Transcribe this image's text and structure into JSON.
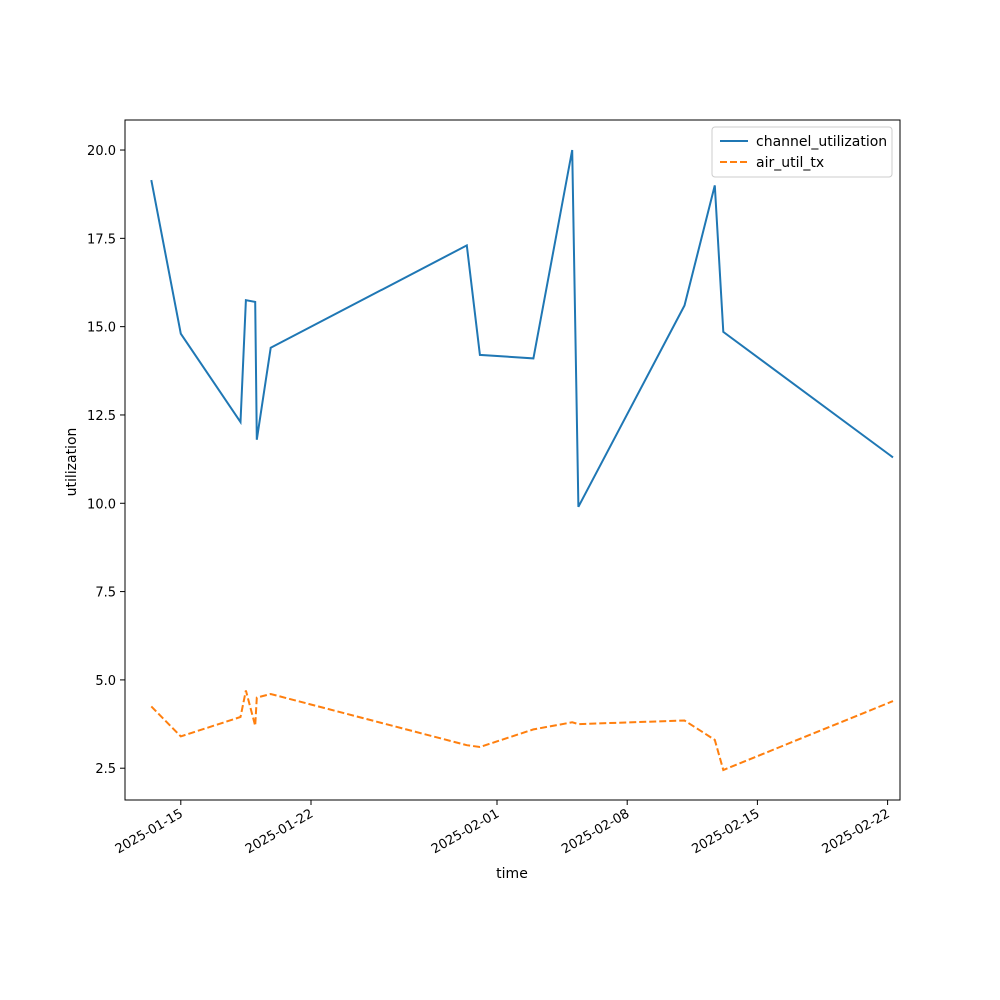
{
  "chart_data": {
    "type": "line",
    "title": "",
    "xlabel": "time",
    "ylabel": "utilization",
    "xlim": [
      "2025-01-12T00:00",
      "2025-02-22T16:00"
    ],
    "ylim": [
      1.6,
      20.85
    ],
    "x_ticks": [
      "2025-01-15",
      "2025-01-22",
      "2025-02-01",
      "2025-02-08",
      "2025-02-15",
      "2025-02-22"
    ],
    "y_ticks": [
      "2.5",
      "5.0",
      "7.5",
      "10.0",
      "12.5",
      "15.0",
      "17.5",
      "20.0"
    ],
    "legend_position": "top-right",
    "grid": false,
    "series": [
      {
        "name": "channel_utilization",
        "color": "#1f77b4",
        "style": "solid",
        "points": [
          {
            "x": "2025-01-13T10:00",
            "y": 19.15
          },
          {
            "x": "2025-01-15T00:00",
            "y": 14.8
          },
          {
            "x": "2025-01-18T05:00",
            "y": 12.3
          },
          {
            "x": "2025-01-18T12:00",
            "y": 15.75
          },
          {
            "x": "2025-01-19T00:00",
            "y": 15.7
          },
          {
            "x": "2025-01-19T02:00",
            "y": 11.8
          },
          {
            "x": "2025-01-19T20:00",
            "y": 14.4
          },
          {
            "x": "2025-01-30T09:00",
            "y": 17.3
          },
          {
            "x": "2025-01-31T02:00",
            "y": 14.2
          },
          {
            "x": "2025-02-02T23:00",
            "y": 14.1
          },
          {
            "x": "2025-02-05T01:00",
            "y": 20.0
          },
          {
            "x": "2025-02-05T09:00",
            "y": 9.9
          },
          {
            "x": "2025-02-11T02:00",
            "y": 15.6
          },
          {
            "x": "2025-02-12T17:00",
            "y": 19.0
          },
          {
            "x": "2025-02-13T04:00",
            "y": 14.85
          },
          {
            "x": "2025-02-22T07:00",
            "y": 11.3
          }
        ]
      },
      {
        "name": "air_util_tx",
        "color": "#ff7f0e",
        "style": "dashed",
        "points": [
          {
            "x": "2025-01-13T10:00",
            "y": 4.25
          },
          {
            "x": "2025-01-15T00:00",
            "y": 3.4
          },
          {
            "x": "2025-01-18T05:00",
            "y": 3.95
          },
          {
            "x": "2025-01-18T12:00",
            "y": 4.7
          },
          {
            "x": "2025-01-19T00:00",
            "y": 3.7
          },
          {
            "x": "2025-01-19T02:00",
            "y": 4.5
          },
          {
            "x": "2025-01-19T20:00",
            "y": 4.6
          },
          {
            "x": "2025-01-30T09:00",
            "y": 3.15
          },
          {
            "x": "2025-01-31T02:00",
            "y": 3.1
          },
          {
            "x": "2025-02-02T23:00",
            "y": 3.6
          },
          {
            "x": "2025-02-05T01:00",
            "y": 3.8
          },
          {
            "x": "2025-02-05T09:00",
            "y": 3.75
          },
          {
            "x": "2025-02-11T02:00",
            "y": 3.85
          },
          {
            "x": "2025-02-12T17:00",
            "y": 3.3
          },
          {
            "x": "2025-02-13T04:00",
            "y": 2.45
          },
          {
            "x": "2025-02-22T07:00",
            "y": 4.4
          }
        ]
      }
    ]
  }
}
